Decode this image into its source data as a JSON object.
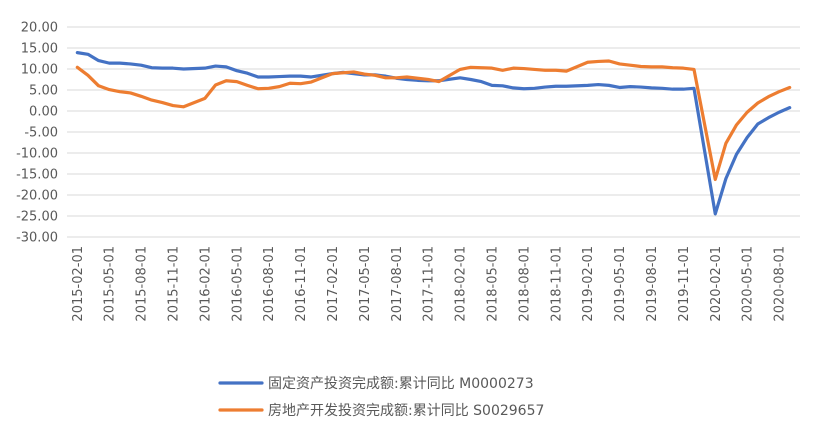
{
  "chart_data": {
    "type": "line",
    "ylim": [
      -30,
      20
    ],
    "yticks": [
      "20.00",
      "15.00",
      "10.00",
      "5.00",
      "0.00",
      "-5.00",
      "-10.00",
      "-15.00",
      "-20.00",
      "-25.00",
      "-30.00"
    ],
    "xtick_labels": [
      "2015-02-01",
      "2015-05-01",
      "2015-08-01",
      "2015-11-01",
      "2016-02-01",
      "2016-05-01",
      "2016-08-01",
      "2016-11-01",
      "2017-02-01",
      "2017-05-01",
      "2017-08-01",
      "2017-11-01",
      "2018-02-01",
      "2018-05-01",
      "2018-08-01",
      "2018-11-01",
      "2019-02-01",
      "2019-05-01",
      "2019-08-01",
      "2019-11-01",
      "2020-02-01",
      "2020-05-01",
      "2020-08-01"
    ],
    "x": [
      "2015-02",
      "2015-03",
      "2015-04",
      "2015-05",
      "2015-06",
      "2015-07",
      "2015-08",
      "2015-09",
      "2015-10",
      "2015-11",
      "2015-12",
      "2016-02",
      "2016-03",
      "2016-04",
      "2016-05",
      "2016-06",
      "2016-07",
      "2016-08",
      "2016-09",
      "2016-10",
      "2016-11",
      "2016-12",
      "2017-02",
      "2017-03",
      "2017-04",
      "2017-05",
      "2017-06",
      "2017-07",
      "2017-08",
      "2017-09",
      "2017-10",
      "2017-11",
      "2017-12",
      "2018-02",
      "2018-03",
      "2018-04",
      "2018-05",
      "2018-06",
      "2018-07",
      "2018-08",
      "2018-09",
      "2018-10",
      "2018-11",
      "2018-12",
      "2019-02",
      "2019-03",
      "2019-04",
      "2019-05",
      "2019-06",
      "2019-07",
      "2019-08",
      "2019-09",
      "2019-10",
      "2019-11",
      "2019-12",
      "2020-02",
      "2020-03",
      "2020-04",
      "2020-05",
      "2020-06",
      "2020-07",
      "2020-08",
      "2020-09"
    ],
    "series": [
      {
        "name": "固定资产投资完成额:累计同比 M0000273",
        "color": "#4472C4",
        "values": [
          13.9,
          13.5,
          12.0,
          11.4,
          11.4,
          11.2,
          10.9,
          10.3,
          10.2,
          10.2,
          10.0,
          10.2,
          10.7,
          10.5,
          9.6,
          9.0,
          8.1,
          8.1,
          8.2,
          8.3,
          8.3,
          8.1,
          8.9,
          9.2,
          8.9,
          8.6,
          8.6,
          8.3,
          7.8,
          7.5,
          7.3,
          7.2,
          7.2,
          7.9,
          7.5,
          7.0,
          6.1,
          6.0,
          5.5,
          5.3,
          5.4,
          5.7,
          5.9,
          5.9,
          6.1,
          6.3,
          6.1,
          5.6,
          5.8,
          5.7,
          5.5,
          5.4,
          5.2,
          5.2,
          5.4,
          -24.5,
          -16.1,
          -10.3,
          -6.3,
          -3.1,
          -1.6,
          -0.3,
          0.8
        ]
      },
      {
        "name": "房地产开发投资完成额:累计同比 S0029657",
        "color": "#ED7D31",
        "values": [
          10.4,
          8.5,
          6.0,
          5.1,
          4.6,
          4.3,
          3.5,
          2.6,
          2.0,
          1.3,
          1.0,
          3.0,
          6.2,
          7.2,
          7.0,
          6.1,
          5.3,
          5.4,
          5.8,
          6.6,
          6.5,
          6.9,
          8.9,
          9.1,
          9.3,
          8.8,
          8.5,
          7.9,
          7.9,
          8.1,
          7.8,
          7.5,
          7.0,
          9.9,
          10.4,
          10.3,
          10.2,
          9.7,
          10.2,
          10.1,
          9.9,
          9.7,
          9.7,
          9.5,
          11.6,
          11.8,
          11.9,
          11.2,
          10.9,
          10.6,
          10.5,
          10.5,
          10.3,
          10.2,
          9.9,
          -16.3,
          -7.7,
          -3.3,
          -0.3,
          1.9,
          3.4,
          4.6,
          5.6
        ]
      }
    ],
    "legend_position": "bottom"
  }
}
